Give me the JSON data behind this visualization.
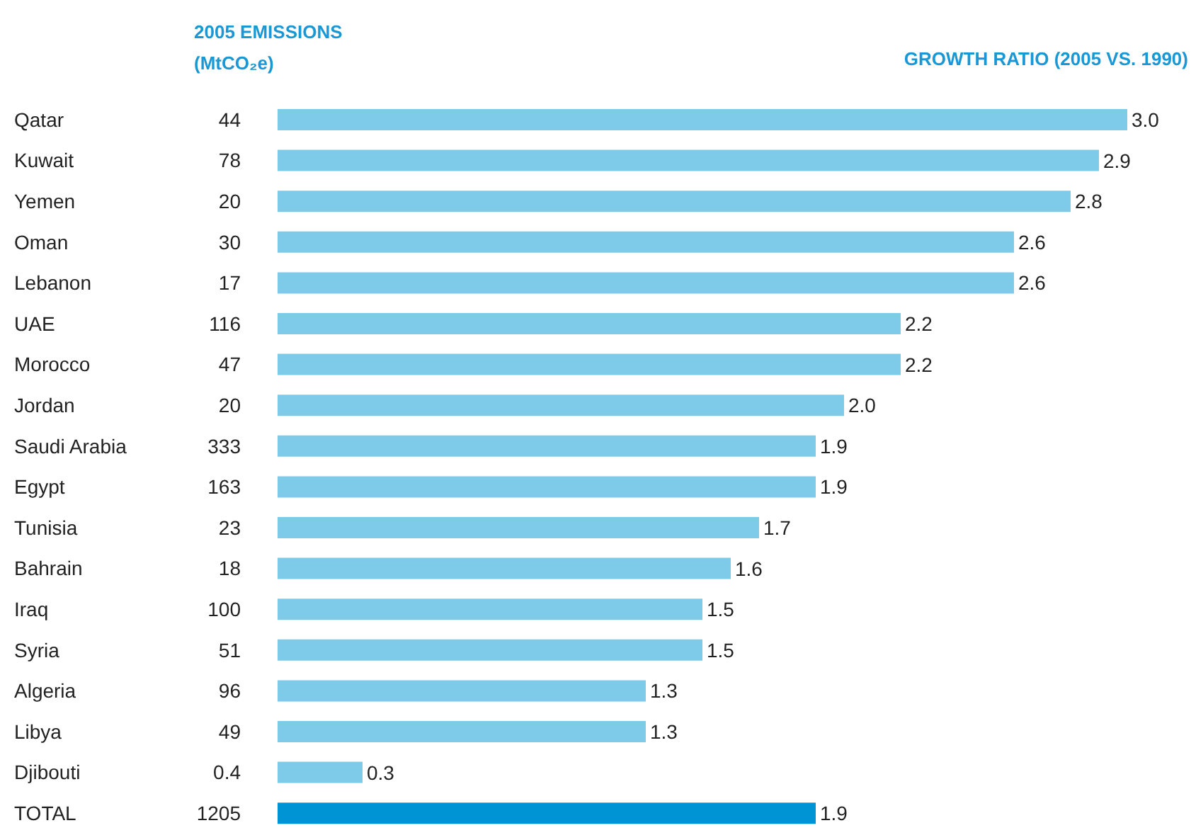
{
  "chart_data": [
    {
      "type": "other",
      "title": "2005 EMISSIONS (MtCO₂e)",
      "values": [
        44,
        78,
        20,
        30,
        17,
        116,
        47,
        20,
        333,
        163,
        23,
        18,
        100,
        51,
        96,
        49,
        0.4,
        1205
      ],
      "data_labels": true
    },
    {
      "type": "bar",
      "orientation": "horizontal",
      "title": "GROWTH RATIO (2005 VS. 1990)",
      "categories": [
        "Qatar",
        "Kuwait",
        "Yemen",
        "Oman",
        "Lebanon",
        "UAE",
        "Morocco",
        "Jordan",
        "Saudi Arabia",
        "Egypt",
        "Tunisia",
        "Bahrain",
        "Iraq",
        "Syria",
        "Algeria",
        "Libya",
        "Djibouti",
        "TOTAL"
      ],
      "values": [
        3.0,
        2.9,
        2.8,
        2.6,
        2.6,
        2.2,
        2.2,
        2.0,
        1.9,
        1.9,
        1.7,
        1.6,
        1.5,
        1.5,
        1.3,
        1.3,
        0.3,
        1.9
      ],
      "value_labels": [
        "3.0",
        "2.9",
        "2.8",
        "2.6",
        "2.6",
        "2.2",
        "2.2",
        "2.0",
        "1.9",
        "1.9",
        "1.7",
        "1.6",
        "1.5",
        "1.5",
        "1.3",
        "1.3",
        "0.3",
        "1.9"
      ],
      "colors": [
        "#7ecae9",
        "#7ecae9",
        "#7ecae9",
        "#7ecae9",
        "#7ecae9",
        "#7ecae9",
        "#7ecae9",
        "#7ecae9",
        "#7ecae9",
        "#7ecae9",
        "#7ecae9",
        "#7ecae9",
        "#7ecae9",
        "#7ecae9",
        "#7ecae9",
        "#7ecae9",
        "#7ecae9",
        "#0094d4"
      ],
      "tick_labels": "y"
    }
  ]
}
